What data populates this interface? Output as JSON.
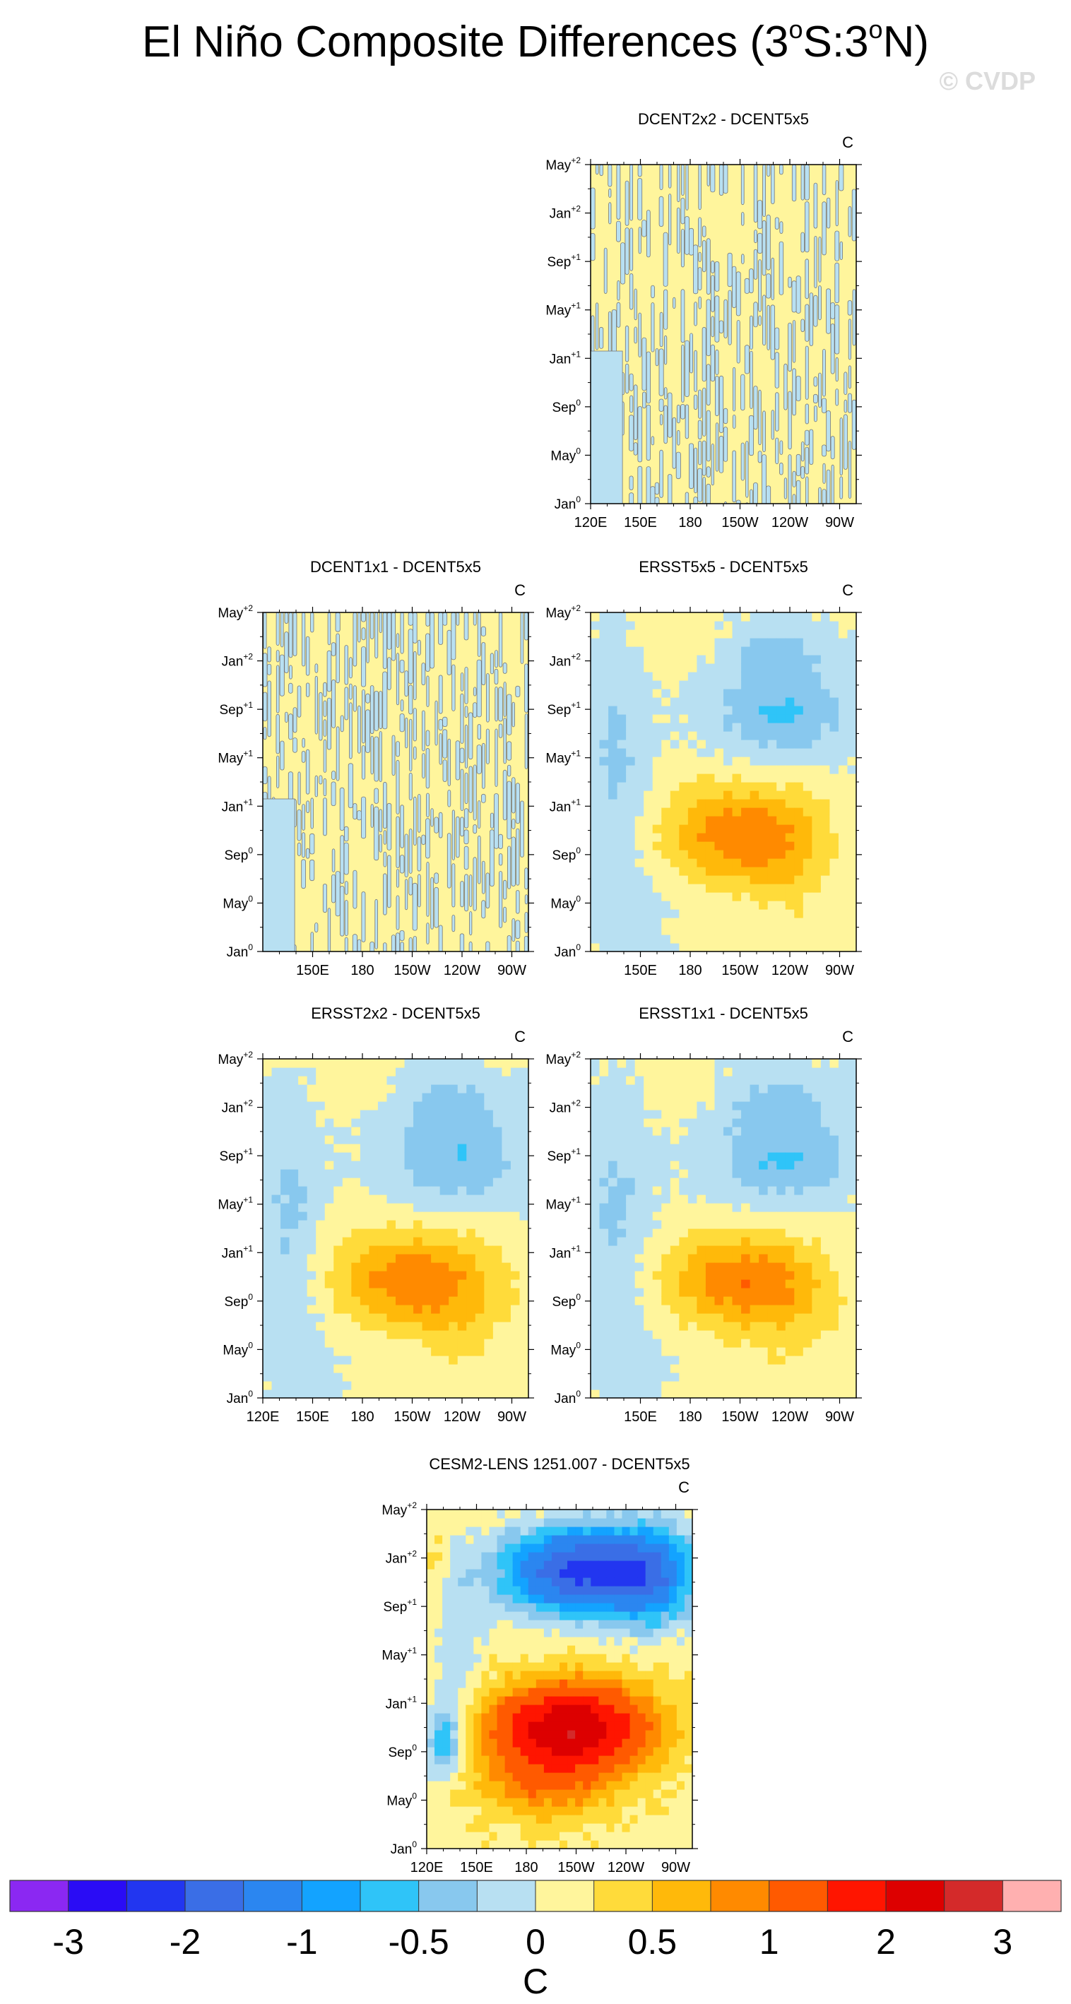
{
  "title_main": "El Niño Composite Differences (3",
  "title_sup1": "o",
  "title_mid": "S:3",
  "title_sup2": "o",
  "title_end": "N)",
  "watermark": "© CVDP",
  "chart_data": {
    "type": "heatmap",
    "y_ticks": [
      {
        "base": "Jan",
        "sup": "0"
      },
      {
        "base": "May",
        "sup": "0"
      },
      {
        "base": "Sep",
        "sup": "0"
      },
      {
        "base": "Jan",
        "sup": "+1"
      },
      {
        "base": "May",
        "sup": "+1"
      },
      {
        "base": "Sep",
        "sup": "+1"
      },
      {
        "base": "Jan",
        "sup": "+2"
      },
      {
        "base": "May",
        "sup": "+2"
      }
    ],
    "x_ticks_full": [
      "120E",
      "150E",
      "180",
      "150W",
      "120W",
      "90W"
    ],
    "x_ticks_short": [
      "150E",
      "180",
      "150W",
      "120W",
      "90W"
    ],
    "x_range_lon": [
      120,
      280
    ],
    "panels": [
      {
        "title": "DCENT2x2 - DCENT5x5",
        "units": "C",
        "pattern": "noise",
        "x_labels": "full",
        "seed": 3
      },
      {
        "title": "DCENT1x1 - DCENT5x5",
        "units": "C",
        "pattern": "noise",
        "x_labels": "short",
        "seed": 7
      },
      {
        "title": "ERSST5x5 - DCENT5x5",
        "units": "C",
        "pattern": "obs",
        "x_labels": "short",
        "seed": 11
      },
      {
        "title": "ERSST2x2 - DCENT5x5",
        "units": "C",
        "pattern": "obs",
        "x_labels": "full",
        "seed": 13
      },
      {
        "title": "ERSST1x1 - DCENT5x5",
        "units": "C",
        "pattern": "obs",
        "x_labels": "short",
        "seed": 17
      },
      {
        "title": "CESM2-LENS 1251.007 - DCENT5x5",
        "units": "C",
        "pattern": "model",
        "x_labels": "full",
        "seed": 19
      }
    ],
    "colorbar": {
      "levels": [
        -3,
        -2.5,
        -2,
        -1.5,
        -1,
        -0.75,
        -0.5,
        -0.25,
        0,
        0.25,
        0.5,
        0.75,
        1,
        1.5,
        2,
        2.5,
        3
      ],
      "tick_labels": [
        "-3",
        "-2",
        "-1",
        "-0.5",
        "0",
        "0.5",
        "1",
        "2",
        "3"
      ],
      "colors": [
        "#8b28f2",
        "#2a0cf5",
        "#2236f0",
        "#3a6ee6",
        "#2b86f0",
        "#13a3ff",
        "#2fc4f8",
        "#88c8ee",
        "#b8e0f2",
        "#fff59c",
        "#ffdb3a",
        "#ffb90a",
        "#ff8a00",
        "#ff5a00",
        "#ff1500",
        "#dd0000",
        "#d42a2a",
        "#ffb0b0"
      ],
      "label": "C"
    }
  }
}
